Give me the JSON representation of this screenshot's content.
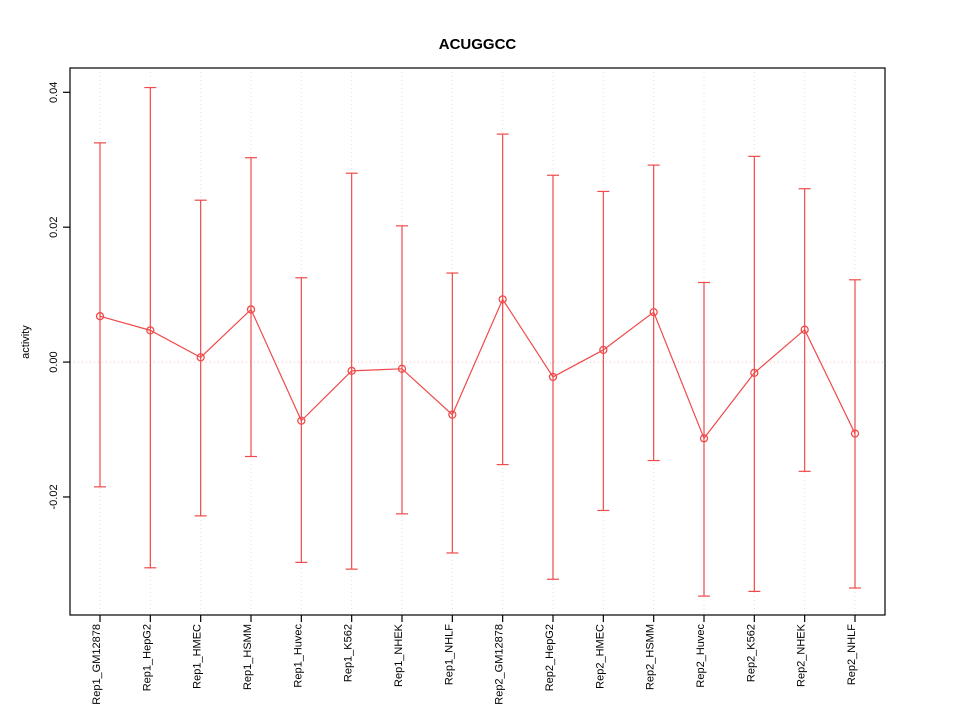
{
  "chart_data": {
    "type": "scatter",
    "title": "ACUGGCC",
    "ylabel": "activity",
    "xlabel": "",
    "categories": [
      "Rep1_GM12878",
      "Rep1_HepG2",
      "Rep1_HMEC",
      "Rep1_HSMM",
      "Rep1_Huvec",
      "Rep1_K562",
      "Rep1_NHEK",
      "Rep1_NHLF",
      "Rep2_GM12878",
      "Rep2_HepG2",
      "Rep2_HMEC",
      "Rep2_HSMM",
      "Rep2_Huvec",
      "Rep2_K562",
      "Rep2_NHEK",
      "Rep2_NHLF"
    ],
    "series": [
      {
        "name": "activity",
        "values": [
          0.0068,
          0.0047,
          0.0007,
          0.0078,
          -0.0087,
          -0.0013,
          -0.001,
          -0.0078,
          0.0093,
          -0.0022,
          0.0018,
          0.0074,
          -0.0113,
          -0.0016,
          0.0048,
          -0.0106
        ],
        "lower": [
          -0.0185,
          -0.0305,
          -0.0228,
          -0.014,
          -0.0297,
          -0.0307,
          -0.0225,
          -0.0283,
          -0.0152,
          -0.0322,
          -0.022,
          -0.0146,
          -0.0347,
          -0.034,
          -0.0162,
          -0.0335
        ],
        "upper": [
          0.0325,
          0.0407,
          0.024,
          0.0303,
          0.0125,
          0.028,
          0.0202,
          0.0132,
          0.0338,
          0.0277,
          0.0253,
          0.0292,
          0.0118,
          0.0305,
          0.0257,
          0.0122
        ]
      }
    ],
    "yticks": [
      -0.02,
      0.0,
      0.02,
      0.04
    ],
    "ytick_labels": [
      "-0.02",
      "0.00",
      "0.02",
      "0.04"
    ],
    "ylim": [
      -0.0375,
      0.0436
    ],
    "legend": "none",
    "grid": "vertical-dotted plus zero-line",
    "colors": {
      "series": "#f04a4a",
      "grid": "#e2e2e2",
      "zero_line": "#f5bcbc",
      "axis": "#000000",
      "background": "#ffffff"
    }
  }
}
